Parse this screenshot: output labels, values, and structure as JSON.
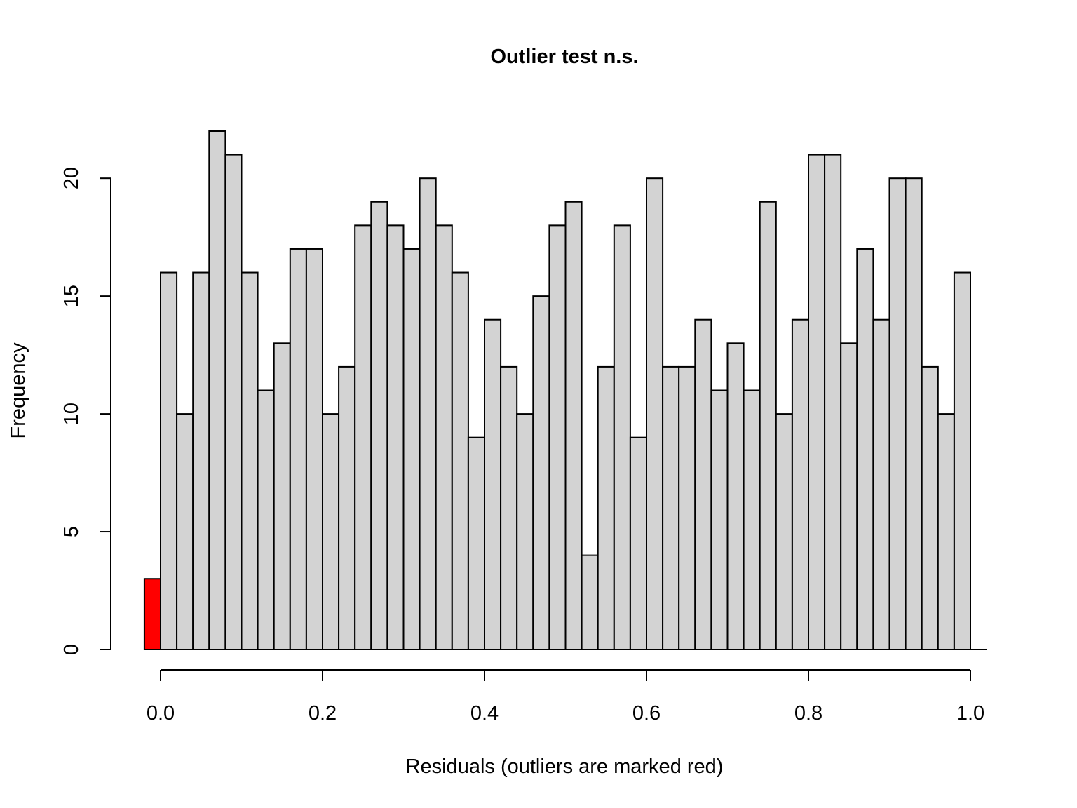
{
  "chart_data": {
    "type": "bar",
    "title": "Outlier test n.s.",
    "xlabel": "Residuals (outliers are marked red)",
    "ylabel": "Frequency",
    "xlim": [
      0,
      1
    ],
    "ylim": [
      0,
      22
    ],
    "x_ticks": [
      "0.0",
      "0.2",
      "0.4",
      "0.6",
      "0.8",
      "1.0"
    ],
    "y_ticks": [
      "0",
      "5",
      "10",
      "15",
      "20"
    ],
    "bin_width": 0.02,
    "outliers": {
      "x": -0.02,
      "value": 3,
      "color": "#ff0000"
    },
    "bar_color": "#d3d3d3",
    "values": [
      16,
      10,
      16,
      22,
      21,
      16,
      11,
      13,
      17,
      17,
      10,
      12,
      18,
      19,
      18,
      17,
      20,
      18,
      16,
      9,
      14,
      12,
      10,
      15,
      18,
      19,
      4,
      12,
      18,
      9,
      20,
      12,
      12,
      14,
      11,
      13,
      11,
      19,
      10,
      14,
      21,
      21,
      13,
      17,
      14,
      20,
      20,
      12,
      10,
      16
    ],
    "grid": false,
    "legend": "none"
  }
}
